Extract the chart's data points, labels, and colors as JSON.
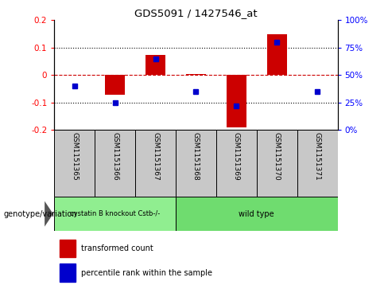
{
  "title": "GDS5091 / 1427546_at",
  "samples": [
    "GSM1151365",
    "GSM1151366",
    "GSM1151367",
    "GSM1151368",
    "GSM1151369",
    "GSM1151370",
    "GSM1151371"
  ],
  "red_values": [
    0.002,
    -0.07,
    0.073,
    0.003,
    -0.19,
    0.15,
    0.002
  ],
  "blue_values": [
    40,
    25,
    65,
    35,
    22,
    80,
    35
  ],
  "ylim_left": [
    -0.2,
    0.2
  ],
  "ylim_right": [
    0,
    100
  ],
  "left_yticks": [
    -0.2,
    -0.1,
    0.0,
    0.1,
    0.2
  ],
  "right_yticks": [
    0,
    25,
    50,
    75,
    100
  ],
  "right_yticklabels": [
    "0%",
    "25%",
    "50%",
    "75%",
    "100%"
  ],
  "bar_color": "#cc0000",
  "dot_color": "#0000cc",
  "zero_line_color": "#cc0000",
  "sample_bg_color": "#c8c8c8",
  "group1_color": "#90ee90",
  "group2_color": "#6fdc6f",
  "legend_red_label": "transformed count",
  "legend_blue_label": "percentile rank within the sample",
  "genotype_label": "genotype/variation",
  "group1_label": "cystatin B knockout Cstb-/-",
  "group2_label": "wild type",
  "group1_indices": [
    0,
    1,
    2
  ],
  "group2_indices": [
    3,
    4,
    5,
    6
  ]
}
